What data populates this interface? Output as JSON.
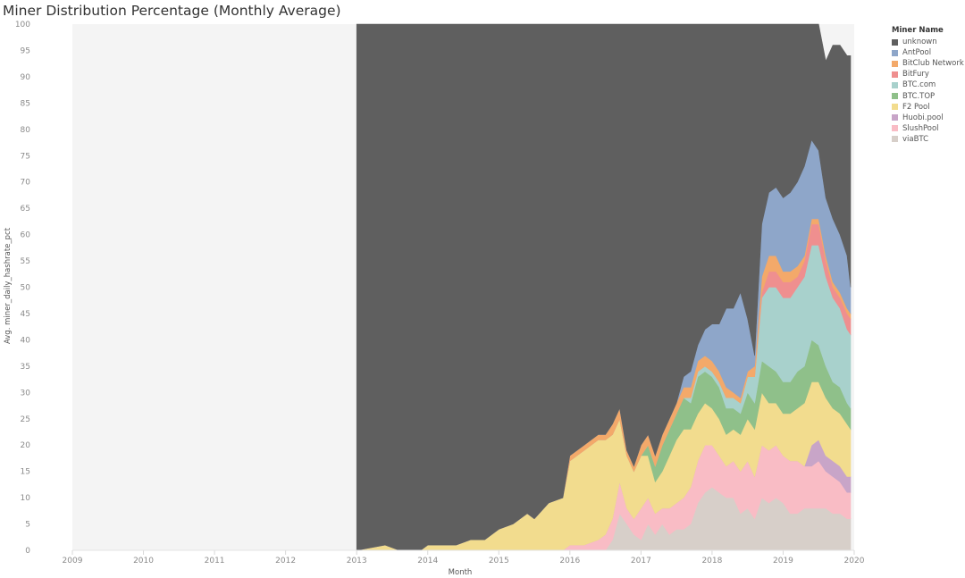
{
  "title": "Miner Distribution Percentage (Monthly Average)",
  "chart_data": {
    "type": "area",
    "title": "Miner Distribution Percentage (Monthly Average)",
    "xlabel": "Month",
    "ylabel": "Avg. miner_daily_hashrate_pct",
    "x_ticks": [
      "2009",
      "2010",
      "2011",
      "2012",
      "2013",
      "2014",
      "2015",
      "2016",
      "2017",
      "2018",
      "2019",
      "2020"
    ],
    "y_ticks": [
      "100",
      "95",
      "90",
      "85",
      "80",
      "75",
      "70",
      "65",
      "60",
      "55",
      "50",
      "45",
      "40",
      "35",
      "30",
      "25",
      "20",
      "15",
      "10",
      "5",
      "0"
    ],
    "ylim": [
      0,
      100
    ],
    "xlim": [
      2009.0,
      2020.0
    ],
    "stacked": true,
    "legend_title": "Miner Name",
    "legend_position": "right",
    "x": [
      2013.0,
      2013.4,
      2013.6,
      2013.9,
      2014.0,
      2014.2,
      2014.4,
      2014.6,
      2014.8,
      2015.0,
      2015.2,
      2015.4,
      2015.5,
      2015.7,
      2015.9,
      2016.0,
      2016.2,
      2016.4,
      2016.5,
      2016.6,
      2016.7,
      2016.8,
      2016.9,
      2017.0,
      2017.1,
      2017.2,
      2017.3,
      2017.4,
      2017.5,
      2017.6,
      2017.7,
      2017.8,
      2017.9,
      2018.0,
      2018.1,
      2018.2,
      2018.3,
      2018.4,
      2018.5,
      2018.6,
      2018.7,
      2018.8,
      2018.9,
      2019.0,
      2019.1,
      2019.2,
      2019.3,
      2019.4,
      2019.5,
      2019.6,
      2019.7,
      2019.8,
      2019.9,
      2019.95
    ],
    "series": [
      {
        "name": "viaBTC",
        "color": "#d7cfc9",
        "values": [
          0,
          0,
          0,
          0,
          0,
          0,
          0,
          0,
          0,
          0,
          0,
          0,
          0,
          0,
          0,
          0,
          0,
          0,
          0,
          2,
          7,
          5,
          3,
          2,
          5,
          3,
          5,
          3,
          4,
          4,
          5,
          9,
          11,
          12,
          11,
          10,
          10,
          7,
          8,
          6,
          10,
          9,
          10,
          9,
          7,
          7,
          8,
          8,
          8,
          8,
          7,
          7,
          6,
          6
        ]
      },
      {
        "name": "SlushPool",
        "color": "#f9bcc5",
        "values": [
          0,
          0,
          0,
          0,
          0,
          0,
          0,
          0,
          0,
          0,
          0,
          0,
          0,
          0,
          0,
          1,
          1,
          2,
          3,
          4,
          6,
          3,
          3,
          6,
          5,
          4,
          3,
          5,
          5,
          6,
          7,
          8,
          9,
          8,
          7,
          6,
          7,
          8,
          9,
          8,
          10,
          10,
          10,
          9,
          10,
          10,
          8,
          8,
          9,
          7,
          7,
          6,
          5,
          5
        ]
      },
      {
        "name": "Huobi.pool",
        "color": "#c8a5c8",
        "values": [
          0,
          0,
          0,
          0,
          0,
          0,
          0,
          0,
          0,
          0,
          0,
          0,
          0,
          0,
          0,
          0,
          0,
          0,
          0,
          0,
          0,
          0,
          0,
          0,
          0,
          0,
          0,
          0,
          0,
          0,
          0,
          0,
          0,
          0,
          0,
          0,
          0,
          0,
          0,
          0,
          0,
          0,
          0,
          0,
          0,
          0,
          0,
          4,
          4,
          3,
          3,
          3,
          3,
          3
        ]
      },
      {
        "name": "F2 Pool",
        "color": "#f2dc8e",
        "values": [
          0,
          1,
          0,
          0,
          1,
          1,
          1,
          2,
          2,
          4,
          5,
          7,
          6,
          9,
          10,
          16,
          18,
          19,
          18,
          16,
          12,
          10,
          9,
          10,
          8,
          6,
          7,
          10,
          12,
          13,
          11,
          9,
          8,
          7,
          7,
          6,
          6,
          7,
          8,
          9,
          10,
          9,
          8,
          8,
          9,
          10,
          12,
          12,
          11,
          11,
          10,
          10,
          10,
          9
        ]
      },
      {
        "name": "BTC.TOP",
        "color": "#8fc08a",
        "values": [
          0,
          0,
          0,
          0,
          0,
          0,
          0,
          0,
          0,
          0,
          0,
          0,
          0,
          0,
          0,
          0,
          0,
          0,
          0,
          0,
          0,
          0,
          0,
          0,
          2,
          3,
          5,
          5,
          5,
          6,
          5,
          7,
          6,
          6,
          6,
          5,
          4,
          4,
          5,
          5,
          6,
          7,
          6,
          6,
          6,
          7,
          7,
          8,
          7,
          6,
          5,
          5,
          4,
          4
        ]
      },
      {
        "name": "BTC.com",
        "color": "#a8d1cc",
        "values": [
          0,
          0,
          0,
          0,
          0,
          0,
          0,
          0,
          0,
          0,
          0,
          0,
          0,
          0,
          0,
          0,
          0,
          0,
          0,
          0,
          0,
          0,
          0,
          0,
          0,
          0,
          0,
          0,
          0,
          0,
          1,
          1,
          1,
          1,
          1,
          2,
          2,
          2,
          3,
          5,
          12,
          15,
          16,
          16,
          16,
          16,
          17,
          18,
          19,
          17,
          16,
          15,
          14,
          14
        ]
      },
      {
        "name": "BitFury",
        "color": "#ef8f8f",
        "values": [
          0,
          0,
          0,
          0,
          0,
          0,
          0,
          0,
          0,
          0,
          0,
          0,
          0,
          0,
          0,
          0,
          0,
          0,
          0,
          0,
          0,
          0,
          0,
          0,
          0,
          0,
          0,
          0,
          0,
          0,
          0,
          0,
          0,
          0,
          0,
          0,
          0,
          0,
          0,
          0,
          1,
          3,
          3,
          3,
          3,
          2,
          3,
          4,
          4,
          3,
          2,
          2,
          3,
          3
        ]
      },
      {
        "name": "BitClub Network",
        "color": "#f3a96a",
        "values": [
          0,
          0,
          0,
          0,
          0,
          0,
          0,
          0,
          0,
          0,
          0,
          0,
          0,
          0,
          0,
          1,
          1,
          1,
          1,
          2,
          2,
          1,
          1,
          2,
          2,
          2,
          2,
          2,
          2,
          2,
          2,
          2,
          2,
          2,
          2,
          2,
          1,
          1,
          1,
          2,
          3,
          3,
          3,
          2,
          2,
          2,
          1,
          1,
          1,
          1,
          1,
          1,
          1,
          1
        ]
      },
      {
        "name": "AntPool",
        "color": "#8ea6c9",
        "values": [
          0,
          0,
          0,
          0,
          0,
          0,
          0,
          0,
          0,
          0,
          0,
          0,
          0,
          0,
          0,
          0,
          0,
          0,
          0,
          0,
          0,
          0,
          0,
          0,
          0,
          0,
          0,
          0,
          0,
          2,
          3,
          3,
          5,
          7,
          9,
          15,
          16,
          20,
          10,
          2,
          10,
          12,
          13,
          14,
          15,
          16,
          17,
          15,
          13,
          11,
          12,
          11,
          10,
          5
        ]
      },
      {
        "name": "unknown",
        "color": "#5f5f5f",
        "values": [
          100,
          99,
          100,
          100,
          99,
          99,
          99,
          98,
          98,
          96,
          95,
          93,
          94,
          91,
          90,
          82,
          80,
          78,
          78,
          76,
          73,
          81,
          84,
          80,
          78,
          82,
          78,
          75,
          72,
          67,
          66,
          61,
          58,
          57,
          57,
          54,
          54,
          51,
          56,
          63,
          38,
          32,
          31,
          33,
          32,
          30,
          27,
          22,
          24,
          26,
          33,
          36,
          38,
          44
        ]
      }
    ]
  }
}
